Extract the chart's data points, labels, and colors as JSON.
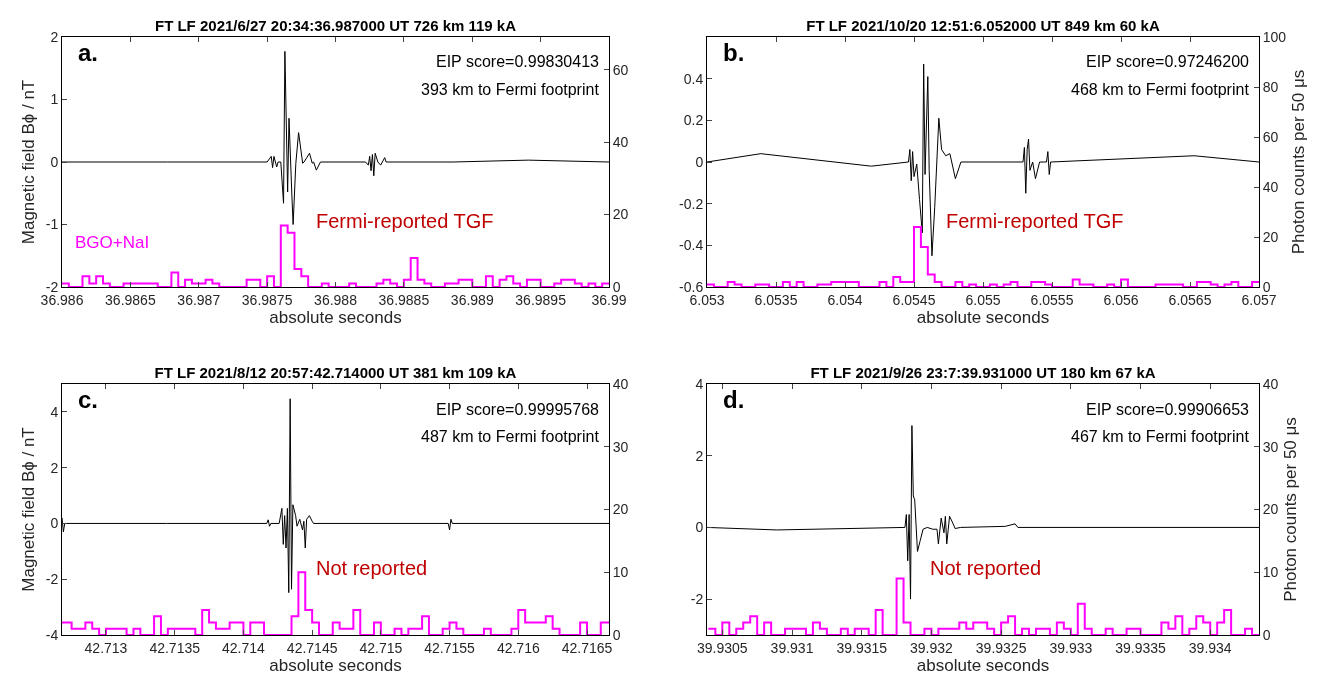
{
  "chart_data": [
    {
      "type": "line",
      "title": "FT LF 2021/6/27 20:34:36.987000 UT 726 km 119 kA",
      "xlabel": "absolute seconds",
      "ylabel": "Magnetic field Bϕ / nT",
      "annotations": [
        "a.",
        "EIP score=0.99830413",
        "393 km to Fermi footprint",
        "Fermi-reported TGF"
      ],
      "xlim": [
        36.986,
        36.99
      ],
      "xticks": [
        36.986,
        36.9865,
        36.987,
        36.9875,
        36.988,
        36.9885,
        36.989,
        36.9895,
        36.99
      ],
      "ylim": [
        -2,
        2
      ],
      "yticks": [
        -2,
        -1,
        0,
        1,
        2
      ],
      "y2lim": [
        0,
        69
      ],
      "y2ticks": [
        0,
        20,
        40,
        60
      ],
      "series": [
        {
          "color": "#000000",
          "x": [
            36.986,
            36.98677,
            36.9875,
            36.98753,
            36.98754,
            36.98755,
            36.98757,
            36.98758,
            36.9876,
            36.98762,
            36.98763,
            36.98765,
            36.98766,
            36.98768,
            36.98769,
            36.98771,
            36.98773,
            36.98776,
            36.98777,
            36.98779,
            36.98781,
            36.98783,
            36.98784,
            36.98786,
            36.98789,
            36.98822,
            36.98824,
            36.98825,
            36.98826,
            36.98827,
            36.98828,
            36.98829,
            36.98831,
            36.98833,
            36.98836,
            36.98837,
            36.98886,
            36.98941,
            36.99
          ],
          "values": [
            0,
            0,
            0,
            0.09,
            -0.09,
            0.09,
            -0.08,
            0,
            0,
            -0.66,
            1.77,
            -0.48,
            0.7,
            -0.48,
            -1.0,
            -0.02,
            0.47,
            -0.02,
            0,
            0.07,
            0.14,
            -0.02,
            0,
            -0.13,
            0,
            0,
            -0.05,
            0.09,
            -0.14,
            0.12,
            -0.22,
            0.14,
            0,
            -0.05,
            0.07,
            0,
            0,
            0.03,
            0
          ]
        },
        {
          "type": "histogram",
          "name": "BGO+NaI",
          "axis": "y2",
          "color": "#ff00ff",
          "bins": [
            36.986,
            36.98605,
            36.98615,
            36.9862,
            36.98625,
            36.9863,
            36.98635,
            36.98645,
            36.9867,
            36.9868,
            36.98685,
            36.9869,
            36.98695,
            36.98705,
            36.9871,
            36.98715,
            36.98735,
            36.98745,
            36.9875,
            36.98755,
            36.9876,
            36.98765,
            36.9877,
            36.98775,
            36.9878,
            36.9879,
            36.98795,
            36.9881,
            36.98815,
            36.9883,
            36.98835,
            36.9884,
            36.98845,
            36.9885,
            36.98855,
            36.9886,
            36.98865,
            36.9887,
            36.9888,
            36.9889,
            36.989,
            36.9891,
            36.98915,
            36.9892,
            36.98925,
            36.9893,
            36.98935,
            36.9894,
            36.9895,
            36.9896,
            36.98965,
            36.98975,
            36.9898,
            36.98985,
            36.9899,
            36.98995,
            36.99
          ],
          "values": [
            1,
            0,
            3,
            1,
            3,
            1,
            0,
            1,
            0,
            4,
            0,
            2,
            1,
            2,
            1,
            0,
            2,
            0,
            3,
            0,
            17,
            15,
            5,
            3,
            0,
            1,
            0,
            1,
            0,
            1,
            2,
            1,
            0,
            2,
            8,
            2,
            1,
            0,
            1,
            2,
            0,
            3,
            0,
            2,
            3,
            1,
            0,
            2,
            0,
            1,
            2,
            1,
            0,
            1,
            0,
            1
          ]
        }
      ]
    },
    {
      "type": "line",
      "title": "FT LF 2021/10/20 12:51:6.052000 UT 849 km 60 kA",
      "xlabel": "absolute seconds",
      "y2label": "Photon counts per 50 μs",
      "annotations": [
        "b.",
        "EIP score=0.97246200",
        "468 km to Fermi footprint",
        "Fermi-reported TGF"
      ],
      "xlim": [
        6.053,
        6.057
      ],
      "xticks": [
        6.053,
        6.0535,
        6.054,
        6.0545,
        6.055,
        6.0555,
        6.056,
        6.0565,
        6.057
      ],
      "ylim": [
        -0.6,
        0.6
      ],
      "yticks": [
        -0.6,
        -0.4,
        -0.2,
        0,
        0.2,
        0.4
      ],
      "y2lim": [
        0,
        100
      ],
      "y2ticks": [
        0,
        20,
        40,
        60,
        80,
        100
      ],
      "series": [
        {
          "color": "#000000",
          "x": [
            6.053,
            6.05339,
            6.05419,
            6.05446,
            6.05447,
            6.05448,
            6.05449,
            6.0545,
            6.05452,
            6.05454,
            6.05456,
            6.05457,
            6.05458,
            6.0546,
            6.05461,
            6.05463,
            6.05465,
            6.05468,
            6.0547,
            6.05473,
            6.05476,
            6.0548,
            6.05484,
            6.05529,
            6.0553,
            6.05531,
            6.05532,
            6.05533,
            6.05534,
            6.05536,
            6.05538,
            6.05541,
            6.05546,
            6.05547,
            6.05548,
            6.05549,
            6.05653,
            6.057
          ],
          "values": [
            0,
            0.04,
            -0.02,
            0,
            0.06,
            -0.09,
            0.05,
            -0.07,
            -0.01,
            -0.18,
            -0.34,
            0.47,
            -0.06,
            0.41,
            -0.04,
            -0.45,
            -0.22,
            0.21,
            0.06,
            0.03,
            0.04,
            -0.08,
            0,
            0,
            0.07,
            -0.15,
            0.06,
            0.11,
            -0.04,
            0,
            -0.08,
            0,
            0,
            0.05,
            -0.06,
            0,
            0.03,
            0
          ]
        },
        {
          "type": "histogram",
          "axis": "y2",
          "color": "#ff00ff",
          "bins": [
            6.053,
            6.05305,
            6.05315,
            6.0532,
            6.05325,
            6.05335,
            6.05345,
            6.05355,
            6.0536,
            6.05365,
            6.0537,
            6.0538,
            6.0539,
            6.0541,
            6.05425,
            6.0543,
            6.05435,
            6.0544,
            6.0545,
            6.05455,
            6.0546,
            6.05465,
            6.0547,
            6.0548,
            6.05485,
            6.0549,
            6.05495,
            6.05505,
            6.0551,
            6.05515,
            6.0552,
            6.05525,
            6.05535,
            6.05545,
            6.0555,
            6.05565,
            6.0557,
            6.0558,
            6.0559,
            6.05595,
            6.056,
            6.05605,
            6.05625,
            6.05645,
            6.05655,
            6.05665,
            6.0567,
            6.05675,
            6.0568,
            6.05685,
            6.05695,
            6.057
          ],
          "values": [
            1,
            0,
            2,
            1,
            0,
            1,
            0,
            2,
            0,
            2,
            0,
            1,
            2,
            0,
            2,
            0,
            4,
            2,
            24,
            16,
            5,
            2,
            0,
            2,
            0,
            1,
            0,
            1,
            0,
            1,
            2,
            0,
            2,
            1,
            0,
            3,
            1,
            0,
            1,
            0,
            3,
            0,
            1,
            0,
            2,
            1,
            0,
            1,
            2,
            0,
            2
          ]
        }
      ]
    },
    {
      "type": "line",
      "title": "FT LF 2021/8/12 20:57:42.714000 UT 381 km 109 kA",
      "xlabel": "absolute seconds",
      "ylabel": "Magnetic field Bϕ / nT",
      "annotations": [
        "c.",
        "EIP score=0.99995768",
        "487 km to Fermi footprint",
        "Not reported"
      ],
      "xlim": [
        42.71268,
        42.71666
      ],
      "xticks": [
        42.713,
        42.7135,
        42.714,
        42.7145,
        42.715,
        42.7155,
        42.716,
        42.7165
      ],
      "ylim": [
        -4,
        5
      ],
      "yticks": [
        -4,
        -2,
        0,
        2,
        4
      ],
      "y2lim": [
        0,
        40
      ],
      "y2ticks": [
        0,
        10,
        20,
        30,
        40
      ],
      "series": [
        {
          "color": "#000000",
          "x": [
            42.71268,
            42.71269,
            42.7127,
            42.71344,
            42.71417,
            42.71418,
            42.71419,
            42.7142,
            42.71426,
            42.71428,
            42.71429,
            42.7143,
            42.71431,
            42.71432,
            42.71433,
            42.71434,
            42.71435,
            42.71436,
            42.71438,
            42.71439,
            42.71441,
            42.71443,
            42.71444,
            42.71445,
            42.71446,
            42.71448,
            42.7145,
            42.71451,
            42.71549,
            42.7155,
            42.71551,
            42.71552,
            42.71666
          ],
          "values": [
            0.2,
            -0.3,
            0,
            0,
            0,
            0.13,
            -0.1,
            0,
            0,
            0.54,
            -0.75,
            0.28,
            -0.88,
            0.54,
            -2.48,
            4.47,
            -2.36,
            0.67,
            0.28,
            -0.1,
            0.15,
            -0.23,
            0.08,
            -0.88,
            0.15,
            0.28,
            0.08,
            0,
            0,
            -0.23,
            0.15,
            0,
            0
          ]
        },
        {
          "type": "histogram",
          "axis": "y2",
          "color": "#ff00ff",
          "bins": [
            42.71268,
            42.71275,
            42.71285,
            42.7129,
            42.71295,
            42.713,
            42.71315,
            42.7132,
            42.71325,
            42.71335,
            42.7134,
            42.71345,
            42.71365,
            42.7137,
            42.71375,
            42.7138,
            42.7139,
            42.714,
            42.71405,
            42.71415,
            42.71435,
            42.7144,
            42.71445,
            42.7145,
            42.71455,
            42.71465,
            42.7147,
            42.7148,
            42.71485,
            42.71495,
            42.715,
            42.7151,
            42.71515,
            42.7152,
            42.7153,
            42.71535,
            42.71545,
            42.7155,
            42.71555,
            42.7156,
            42.71575,
            42.7158,
            42.71595,
            42.716,
            42.71605,
            42.7162,
            42.71625,
            42.7163,
            42.71645,
            42.7165,
            42.7166,
            42.71666
          ],
          "values": [
            2,
            1,
            2,
            1,
            0,
            1,
            0,
            1,
            0,
            3,
            0,
            1,
            0,
            4,
            2,
            1,
            2,
            0,
            2,
            0,
            3,
            10,
            4,
            2,
            0,
            2,
            1,
            4,
            0,
            2,
            0,
            1,
            0,
            1,
            3,
            0,
            1,
            2,
            1,
            0,
            1,
            0,
            1,
            4,
            2,
            3,
            1,
            0,
            2,
            0,
            2
          ]
        }
      ]
    },
    {
      "type": "line",
      "title": "FT LF 2021/9/26 23:7:39.931000 UT 180 km 67 kA",
      "xlabel": "absolute seconds",
      "y2label": "Photon counts per 50 μs",
      "annotations": [
        "d.",
        "EIP score=0.99906653",
        "467 km to Fermi footprint",
        "Not reported"
      ],
      "xlim": [
        39.93039,
        39.93435
      ],
      "xticks": [
        39.9305,
        39.931,
        39.9315,
        39.932,
        39.9325,
        39.933,
        39.9335,
        39.934
      ],
      "ylim": [
        -3,
        4
      ],
      "yticks": [
        -2,
        0,
        2,
        4
      ],
      "y2lim": [
        0,
        40
      ],
      "y2ticks": [
        0,
        10,
        20,
        30,
        40
      ],
      "series": [
        {
          "color": "#000000",
          "x": [
            39.93039,
            39.93089,
            39.93181,
            39.93182,
            39.93183,
            39.93184,
            39.93185,
            39.93186,
            39.93187,
            39.93188,
            39.9319,
            39.93192,
            39.93194,
            39.93197,
            39.93201,
            39.93204,
            39.93205,
            39.93207,
            39.93209,
            39.9321,
            39.93211,
            39.93213,
            39.93215,
            39.93217,
            39.93221,
            39.93253,
            39.9326,
            39.93262,
            39.93435
          ],
          "values": [
            0,
            -0.07,
            0,
            0.36,
            -0.93,
            0.36,
            -2.0,
            2.84,
            0.88,
            0.77,
            -0.67,
            -0.36,
            -0.05,
            0,
            -0.05,
            -0.05,
            -0.46,
            0.26,
            -0.15,
            0.31,
            -0.46,
            0.31,
            0.15,
            -0.03,
            0,
            0.03,
            0.1,
            0,
            0
          ]
        },
        {
          "type": "histogram",
          "axis": "y2",
          "color": "#ff00ff",
          "bins": [
            39.9304,
            39.93045,
            39.9305,
            39.93055,
            39.9306,
            39.93065,
            39.9307,
            39.93075,
            39.9308,
            39.93085,
            39.93095,
            39.9311,
            39.93115,
            39.9312,
            39.93125,
            39.93135,
            39.9314,
            39.93145,
            39.93155,
            39.9316,
            39.93165,
            39.93175,
            39.9318,
            39.93185,
            39.93195,
            39.932,
            39.93205,
            39.9322,
            39.93225,
            39.9323,
            39.9324,
            39.93245,
            39.9325,
            39.93255,
            39.9326,
            39.93265,
            39.9327,
            39.93275,
            39.93285,
            39.9329,
            39.93295,
            39.933,
            39.93305,
            39.9331,
            39.93315,
            39.93325,
            39.9333,
            39.9334,
            39.9335,
            39.93365,
            39.9337,
            39.93375,
            39.9338,
            39.93385,
            39.9339,
            39.93395,
            39.934,
            39.93405,
            39.9341,
            39.93415,
            39.93425,
            39.9343,
            39.93435
          ],
          "values": [
            1,
            0,
            2,
            0,
            1,
            2,
            3,
            0,
            2,
            0,
            1,
            0,
            2,
            1,
            0,
            1,
            0,
            1,
            0,
            4,
            0,
            9,
            2,
            0,
            1,
            0,
            1,
            2,
            1,
            2,
            1,
            0,
            2,
            3,
            0,
            1,
            0,
            1,
            0,
            2,
            1,
            0,
            5,
            1,
            0,
            1,
            0,
            1,
            0,
            2,
            1,
            3,
            0,
            1,
            3,
            2,
            0,
            2,
            4,
            0,
            1,
            0
          ]
        }
      ]
    }
  ]
}
